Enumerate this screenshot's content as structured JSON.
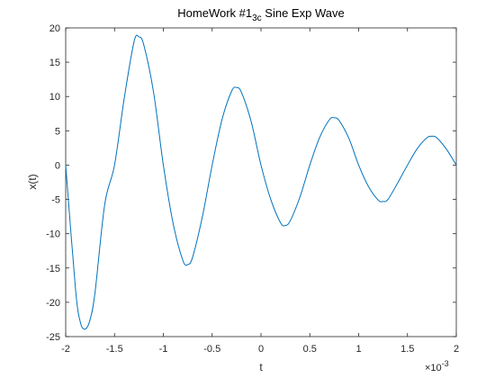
{
  "chart_data": {
    "type": "line",
    "title": {
      "main": "HomeWork #1",
      "subscript": "3c",
      "rest": " Sine Exp Wave"
    },
    "xlabel": "t",
    "ylabel": "x(t)",
    "xlim": [
      -2,
      2
    ],
    "ylim": [
      -25,
      20
    ],
    "x_multiplier": {
      "base": "×10",
      "exponent": "-3"
    },
    "xticks": [
      -2,
      -1.5,
      -1,
      -0.5,
      0,
      0.5,
      1,
      1.5,
      2
    ],
    "xtick_labels": [
      "-2",
      "-1.5",
      "-1",
      "-0.5",
      "0",
      "0.5",
      "1",
      "1.5",
      "2"
    ],
    "yticks": [
      -25,
      -20,
      -15,
      -10,
      -5,
      0,
      5,
      10,
      15,
      20
    ],
    "ytick_labels": [
      "-25",
      "-20",
      "-15",
      "-10",
      "-5",
      "0",
      "5",
      "10",
      "15",
      "20"
    ],
    "grid": false,
    "series": [
      {
        "color": "#0072BD",
        "x": [
          -2.0,
          -1.9,
          -1.85,
          -1.8,
          -1.75,
          -1.7,
          -1.6,
          -1.5,
          -1.4,
          -1.3,
          -1.25,
          -1.2,
          -1.1,
          -1.0,
          -0.9,
          -0.8,
          -0.75,
          -0.7,
          -0.6,
          -0.5,
          -0.4,
          -0.3,
          -0.25,
          -0.2,
          -0.1,
          0.0,
          0.1,
          0.2,
          0.25,
          0.3,
          0.4,
          0.5,
          0.6,
          0.7,
          0.75,
          0.8,
          0.9,
          1.0,
          1.1,
          1.2,
          1.25,
          1.3,
          1.4,
          1.5,
          1.6,
          1.7,
          1.75,
          1.8,
          1.9,
          2.0
        ],
        "y": [
          0,
          -18.0,
          -22.9,
          -23.9,
          -22.5,
          -18.6,
          -5.7,
          0,
          9.8,
          18.0,
          18.7,
          17.5,
          10.6,
          0,
          -8.5,
          -13.9,
          -14.5,
          -13.4,
          -7.5,
          0,
          6.6,
          10.8,
          11.3,
          10.6,
          6.3,
          0,
          -5.0,
          -8.4,
          -8.8,
          -8.1,
          -4.6,
          0,
          4.0,
          6.6,
          6.9,
          6.5,
          3.9,
          0,
          -3.1,
          -5.1,
          -5.3,
          -5.0,
          -2.6,
          0,
          2.4,
          4.0,
          4.2,
          4.0,
          2.3,
          0
        ]
      }
    ]
  }
}
